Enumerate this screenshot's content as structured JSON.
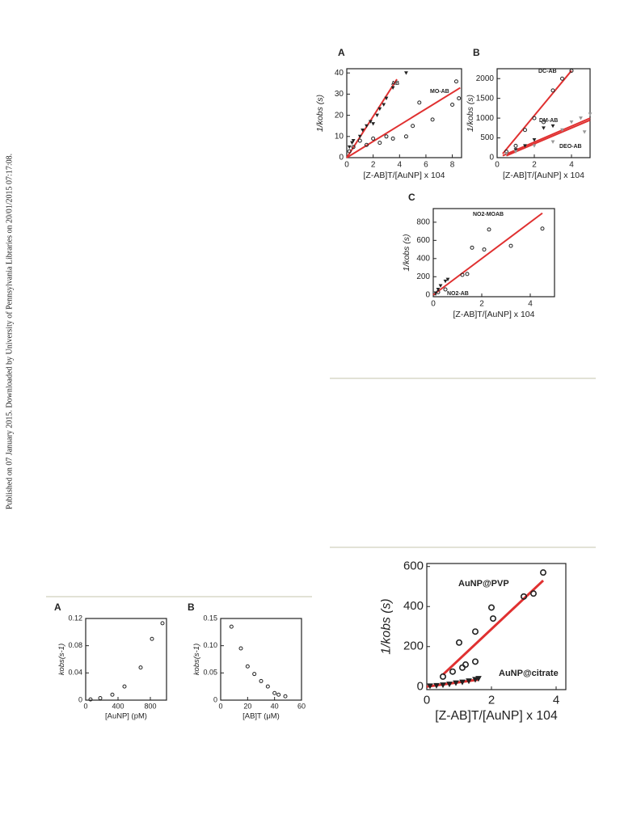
{
  "side_note": "Published on 07 January 2015. Downloaded by University of Pennsylvania Libraries on 20/01/2015 07:17:08.",
  "chart_data": [
    {
      "type": "scatter",
      "panel": "A",
      "ylabel": "1/kobs (s)",
      "xlabel": "[Z-AB]T/[AuNP] x 104",
      "xlim": [
        0,
        8.7
      ],
      "xticks": [
        0,
        2,
        4,
        6,
        8
      ],
      "ylim": [
        0,
        42
      ],
      "yticks": [
        0,
        10,
        20,
        30,
        40
      ],
      "series": [
        {
          "name": "AB",
          "color": "#222222",
          "marker": "triangle",
          "x": [
            0.2,
            0.4,
            0.5,
            1,
            1.2,
            1.5,
            1.8,
            2,
            2.3,
            2.5,
            2.8,
            3,
            3.5,
            4.5
          ],
          "values": [
            5,
            7,
            8,
            10,
            13,
            15,
            17,
            16,
            20,
            23,
            25,
            28,
            33,
            40
          ]
        },
        {
          "name": "MO-AB",
          "color": "#222222",
          "marker": "circle",
          "x": [
            0.2,
            0.5,
            1,
            1.5,
            2,
            2.5,
            3,
            3.5,
            4.5,
            5,
            5.5,
            6.5,
            8,
            8.3,
            8.5
          ],
          "values": [
            3,
            5,
            8,
            6,
            9,
            7,
            10,
            9,
            10,
            15,
            26,
            18,
            25,
            36,
            28
          ]
        }
      ],
      "fits": [
        {
          "color": "#e03030",
          "x": [
            0,
            3.8
          ],
          "y": [
            0,
            37
          ]
        },
        {
          "color": "#e03030",
          "x": [
            0,
            8.6
          ],
          "y": [
            0,
            33
          ]
        }
      ]
    },
    {
      "type": "scatter",
      "panel": "B",
      "ylabel": "1/kobs (s)",
      "xlabel": "[Z-AB]T/[AuNP] x 104",
      "xlim": [
        0,
        5
      ],
      "xticks": [
        0,
        2,
        4
      ],
      "ylim": [
        0,
        2250
      ],
      "yticks": [
        0,
        500,
        1000,
        1500,
        2000
      ],
      "series": [
        {
          "name": "DC-AB",
          "color": "#222222",
          "marker": "circle",
          "x": [
            0.5,
            1,
            1.5,
            2,
            2.5,
            3,
            3.5,
            4
          ],
          "values": [
            150,
            300,
            700,
            1000,
            900,
            1700,
            2000,
            2200
          ]
        },
        {
          "name": "DM-AB",
          "color": "#222222",
          "marker": "triangle",
          "x": [
            0.5,
            1,
            1.5,
            2,
            2.5,
            3
          ],
          "values": [
            100,
            200,
            300,
            450,
            750,
            800
          ]
        },
        {
          "name": "DEO-AB",
          "color": "#999999",
          "marker": "triangle",
          "x": [
            0.5,
            1,
            2,
            3,
            3.5,
            4,
            4.5,
            4.7,
            5
          ],
          "values": [
            100,
            150,
            300,
            400,
            700,
            900,
            1000,
            650,
            1100
          ]
        }
      ],
      "fits": [
        {
          "color": "#e03030",
          "x": [
            0.3,
            4
          ],
          "y": [
            100,
            2200
          ]
        },
        {
          "color": "#e03030",
          "x": [
            0.3,
            5
          ],
          "y": [
            50,
            1000
          ]
        },
        {
          "color": "#e03030",
          "x": [
            0.5,
            5
          ],
          "y": [
            50,
            950
          ]
        }
      ]
    },
    {
      "type": "scatter",
      "panel": "C",
      "ylabel": "1/kobs (s)",
      "xlabel": "[Z-AB]T/[AuNP] x 104",
      "xlim": [
        0,
        5
      ],
      "xticks": [
        0,
        2,
        4
      ],
      "ylim": [
        -20,
        950
      ],
      "yticks": [
        0,
        200,
        400,
        600,
        800
      ],
      "series": [
        {
          "name": "NO2-MOAB",
          "color": "#222222",
          "marker": "circle",
          "x": [
            0.2,
            0.5,
            1.2,
            1.4,
            1.6,
            2.1,
            2.3,
            3.2,
            4.5
          ],
          "values": [
            30,
            60,
            220,
            230,
            520,
            500,
            720,
            540,
            730
          ]
        },
        {
          "name": "NO2-AB",
          "color": "#222222",
          "marker": "triangle",
          "x": [
            0.1,
            0.2,
            0.3,
            0.5,
            0.6
          ],
          "values": [
            20,
            60,
            100,
            150,
            170
          ]
        }
      ],
      "fits": [
        {
          "color": "#e03030",
          "x": [
            0,
            4.5
          ],
          "y": [
            0,
            900
          ]
        }
      ]
    },
    {
      "type": "scatter",
      "panel": "A",
      "ylabel": "kobs(s-1)",
      "xlabel": "[AuNP] (pM)",
      "xlim": [
        0,
        1000
      ],
      "xticks": [
        0,
        400,
        800
      ],
      "ylim": [
        0,
        0.12
      ],
      "yticks": [
        0,
        0.04,
        0.08,
        0.12
      ],
      "color": "#222222",
      "marker": "circle",
      "x": [
        60,
        180,
        330,
        480,
        680,
        820,
        950
      ],
      "values": [
        0.001,
        0.003,
        0.008,
        0.02,
        0.048,
        0.09,
        0.113
      ]
    },
    {
      "type": "scatter",
      "panel": "B",
      "ylabel": "kobs(s-1)",
      "xlabel": "[AB]T (μM)",
      "xlim": [
        0,
        60
      ],
      "xticks": [
        0,
        20,
        40,
        60
      ],
      "ylim": [
        0,
        0.15
      ],
      "yticks": [
        0,
        0.05,
        {
          "value": 0.1,
          "label": "0.10"
        },
        0.15
      ],
      "color": "#222222",
      "marker": "circle",
      "x": [
        8,
        15,
        20,
        25,
        30,
        35,
        40,
        43,
        48
      ],
      "values": [
        0.135,
        0.095,
        0.062,
        0.048,
        0.035,
        0.025,
        0.013,
        0.01,
        0.007
      ]
    },
    {
      "type": "scatter",
      "ylabel": "1/kobs (s)",
      "xlabel": "[Z-AB]T/[AuNP] x 104",
      "xlim": [
        0,
        4.3
      ],
      "xticks": [
        0,
        2,
        4
      ],
      "ylim": [
        -15,
        615
      ],
      "yticks": [
        0,
        200,
        400,
        600
      ],
      "series": [
        {
          "name": "AuNP@PVP",
          "color": "#222222",
          "marker": "circle",
          "x": [
            0.5,
            0.8,
            1,
            1.1,
            1.2,
            1.5,
            1.5,
            2,
            2.05,
            3,
            3.3,
            3.6
          ],
          "values": [
            50,
            75,
            220,
            95,
            110,
            125,
            275,
            395,
            340,
            450,
            465,
            570
          ]
        },
        {
          "name": "AuNP@citrate",
          "color": "#222222",
          "marker": "triangle",
          "x": [
            0.1,
            0.3,
            0.5,
            0.7,
            0.9,
            1.1,
            1.3,
            1.5,
            1.6
          ],
          "values": [
            3,
            5,
            8,
            12,
            18,
            22,
            28,
            35,
            40
          ]
        }
      ],
      "fits": [
        {
          "color": "#e03030",
          "x": [
            0.5,
            3.6
          ],
          "y": [
            60,
            530
          ]
        },
        {
          "color": "#e03030",
          "x": [
            0,
            1.6
          ],
          "y": [
            0,
            35
          ]
        }
      ]
    }
  ]
}
